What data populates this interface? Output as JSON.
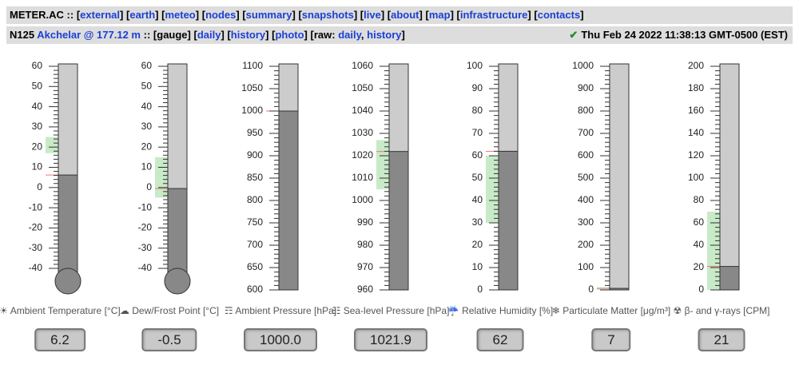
{
  "header": {
    "site": "METER.AC",
    "sep": "::",
    "brackets": [
      "[",
      "]"
    ],
    "links": [
      "external",
      "earth",
      "meteo",
      "nodes",
      "summary",
      "snapshots",
      "live",
      "about",
      "map",
      "infrastructure",
      "contacts"
    ]
  },
  "subheader": {
    "node": "N125",
    "location": "Akchelar @ 177.12 m",
    "sep": "::",
    "current": "gauge",
    "links": [
      "daily",
      "history",
      "photo"
    ],
    "raw_label": "raw:",
    "raw_links": [
      "daily",
      "history"
    ],
    "comma": ",",
    "check": "✔",
    "timestamp": "Thu Feb 24 2022 11:38:13 GMT-0500 (EST)"
  },
  "gauges": [
    {
      "icon": "☀",
      "label": "Ambient Temperature [°C]",
      "value": 6.2,
      "ticks": [
        -40,
        -30,
        -20,
        -10,
        0,
        10,
        20,
        30,
        40,
        50,
        60
      ],
      "green": [
        17,
        25
      ],
      "bulb": true
    },
    {
      "icon": "☁",
      "label": "Dew/Frost Point [°C]",
      "value": -0.5,
      "ticks": [
        -40,
        -30,
        -20,
        -10,
        0,
        10,
        20,
        30,
        40,
        50,
        60
      ],
      "green": [
        -5,
        15
      ],
      "bulb": true
    },
    {
      "icon": "☶",
      "label": "Ambient Pressure [hPa]",
      "value": 1000,
      "value_label": "1000.0",
      "ticks": [
        600,
        650,
        700,
        750,
        800,
        850,
        900,
        950,
        1000,
        1050,
        1100
      ],
      "bulb": false
    },
    {
      "icon": "☷",
      "label": "Sea-level Pressure [hPa]",
      "value": 1021.9,
      "ticks": [
        960,
        970,
        980,
        990,
        1000,
        1010,
        1020,
        1030,
        1040,
        1050,
        1060
      ],
      "green": [
        1005,
        1027
      ],
      "bulb": false
    },
    {
      "icon": "☔",
      "label": "Relative Humidity [%]",
      "value": 62,
      "ticks": [
        0,
        10,
        20,
        30,
        40,
        50,
        60,
        70,
        80,
        90,
        100
      ],
      "green": [
        30,
        60
      ],
      "bulb": false
    },
    {
      "icon": "❄",
      "label": "Particulate Matter [μg/m³]",
      "value": 7,
      "ticks": [
        0,
        100,
        200,
        300,
        400,
        500,
        600,
        700,
        800,
        900,
        1000
      ],
      "green": [
        0,
        12
      ],
      "bulb": false
    },
    {
      "icon": "☢",
      "label": "β- and γ-rays [CPM]",
      "value": 21,
      "ticks": [
        0,
        20,
        40,
        60,
        80,
        100,
        120,
        140,
        160,
        180,
        200
      ],
      "green": [
        0,
        70
      ],
      "bulb": false
    }
  ]
}
